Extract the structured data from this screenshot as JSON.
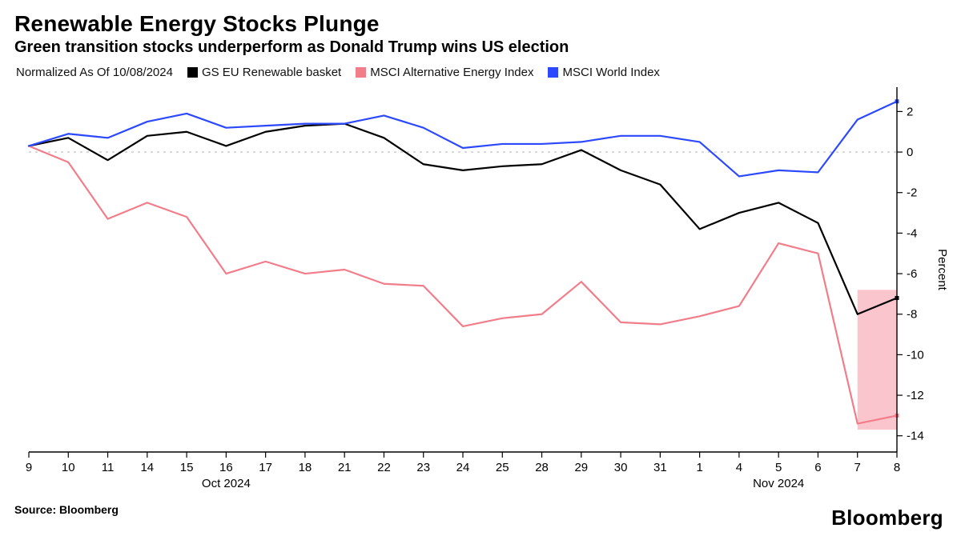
{
  "title": "Renewable Energy Stocks Plunge",
  "subtitle": "Green transition stocks underperform as Donald Trump wins US election",
  "normalized_label": "Normalized As Of 10/08/2024",
  "source_label": "Source: Bloomberg",
  "brand": "Bloomberg",
  "y_axis_label": "Percent",
  "chart": {
    "type": "line",
    "background_color": "#ffffff",
    "axis_color": "#000000",
    "zero_line_color": "#c8c8c8",
    "zero_line_dash": "3,5",
    "highlight_fill": "#f9a6b2",
    "highlight_opacity": 0.65,
    "highlight_x_from": 21,
    "highlight_x_to": 22,
    "line_width": 2.2,
    "tick_font_size": 15,
    "label_font_size": 15,
    "month_label_font_size": 15,
    "ylim": [
      -14.8,
      3.2
    ],
    "yticks": [
      -14,
      -12,
      -10,
      -8,
      -6,
      -4,
      -2,
      0,
      2
    ],
    "x_labels": [
      "9",
      "10",
      "11",
      "14",
      "15",
      "16",
      "17",
      "18",
      "21",
      "22",
      "23",
      "24",
      "25",
      "28",
      "29",
      "30",
      "31",
      "1",
      "4",
      "5",
      "6",
      "7",
      "8"
    ],
    "x_month_breaks": [
      {
        "label": "Oct 2024",
        "at_index": 5
      },
      {
        "label": "Nov 2024",
        "at_index": 19
      }
    ],
    "series": [
      {
        "name": "GS EU Renewable basket",
        "color": "#000000",
        "values": [
          0.3,
          0.7,
          -0.4,
          0.8,
          1.0,
          0.3,
          1.0,
          1.3,
          1.4,
          0.7,
          -0.6,
          -0.9,
          -0.7,
          -0.6,
          0.1,
          -0.9,
          -1.6,
          -3.8,
          -3.0,
          -2.5,
          -3.5,
          -8.0,
          -7.2
        ]
      },
      {
        "name": "MSCI Alternative Energy Index",
        "color": "#f27d8a",
        "values": [
          0.3,
          -0.5,
          -3.3,
          -2.5,
          -3.2,
          -6.0,
          -5.4,
          -6.0,
          -5.8,
          -6.5,
          -6.6,
          -8.6,
          -8.2,
          -8.0,
          -6.4,
          -8.4,
          -8.5,
          -8.1,
          -7.6,
          -4.5,
          -5.0,
          -13.4,
          -13.0
        ]
      },
      {
        "name": "MSCI World Index",
        "color": "#2c49ff",
        "values": [
          0.3,
          0.9,
          0.7,
          1.5,
          1.9,
          1.2,
          1.3,
          1.4,
          1.4,
          1.8,
          1.2,
          0.2,
          0.4,
          0.4,
          0.5,
          0.8,
          0.8,
          0.5,
          -1.2,
          -0.9,
          -1.0,
          1.6,
          2.5
        ]
      }
    ],
    "last_point_markers": true,
    "last_marker_size": 5
  }
}
